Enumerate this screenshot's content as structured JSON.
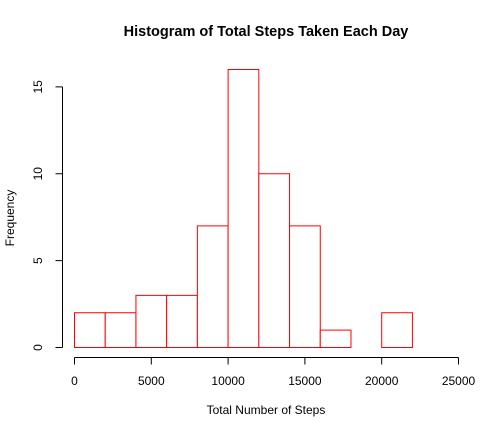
{
  "chart_data": {
    "type": "bar",
    "title": "Histogram of Total Steps Taken Each Day",
    "xlabel": "Total Number of Steps",
    "ylabel": "Frequency",
    "bins": [
      {
        "from": 0,
        "to": 2000,
        "count": 2
      },
      {
        "from": 2000,
        "to": 4000,
        "count": 2
      },
      {
        "from": 4000,
        "to": 6000,
        "count": 3
      },
      {
        "from": 6000,
        "to": 8000,
        "count": 3
      },
      {
        "from": 8000,
        "to": 10000,
        "count": 7
      },
      {
        "from": 10000,
        "to": 12000,
        "count": 16
      },
      {
        "from": 12000,
        "to": 14000,
        "count": 10
      },
      {
        "from": 14000,
        "to": 16000,
        "count": 7
      },
      {
        "from": 16000,
        "to": 18000,
        "count": 1
      },
      {
        "from": 18000,
        "to": 20000,
        "count": 0
      },
      {
        "from": 20000,
        "to": 22000,
        "count": 2
      }
    ],
    "xlim": [
      0,
      25000
    ],
    "ylim": [
      0,
      16
    ],
    "xticks": [
      0,
      5000,
      10000,
      15000,
      20000,
      25000
    ],
    "yticks": [
      0,
      5,
      10,
      15
    ],
    "bar_color": "#ff0000",
    "grid": false
  }
}
